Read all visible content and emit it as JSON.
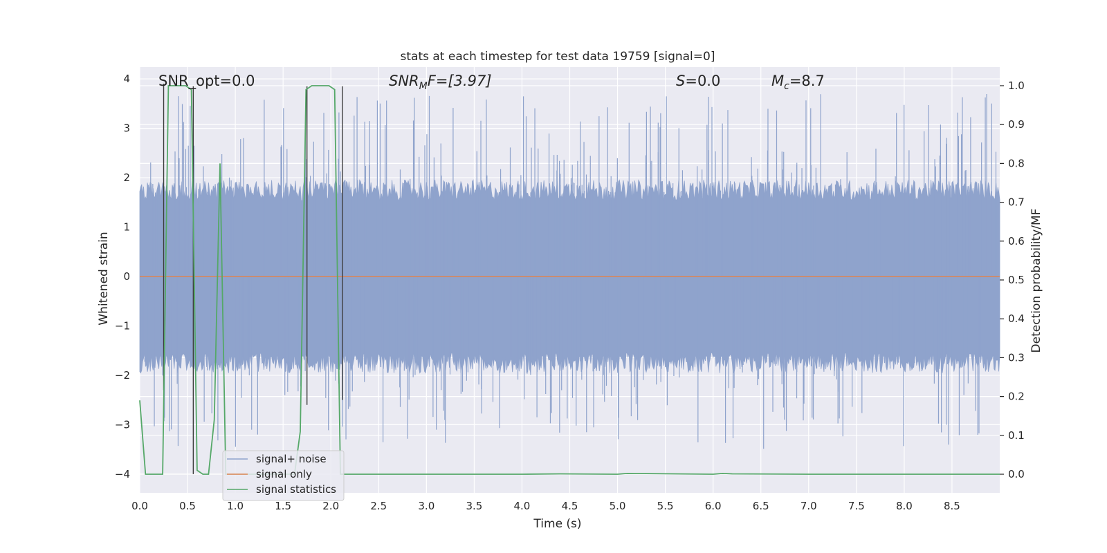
{
  "chart_data": {
    "type": "line",
    "title": "stats at each timestep for test data 19759 [signal=0]",
    "xlabel": "Time (s)",
    "ylabel": "Whitened strain",
    "ylabel_right": "Detection probability/MF",
    "xlim": [
      0.0,
      9.0
    ],
    "ylim": [
      -4.38,
      4.24
    ],
    "ylim_right": [
      -0.048,
      1.048
    ],
    "xticks": [
      0.0,
      0.5,
      1.0,
      1.5,
      2.0,
      2.5,
      3.0,
      3.5,
      4.0,
      4.5,
      5.0,
      5.5,
      6.0,
      6.5,
      7.0,
      7.5,
      8.0,
      8.5
    ],
    "xtick_labels": [
      "0.0",
      "0.5",
      "1.0",
      "1.5",
      "2.0",
      "2.5",
      "3.0",
      "3.5",
      "4.0",
      "4.5",
      "5.0",
      "5.5",
      "6.0",
      "6.5",
      "7.0",
      "7.5",
      "8.0",
      "8.5"
    ],
    "yticks": [
      -4,
      -3,
      -2,
      -1,
      0,
      1,
      2,
      3,
      4
    ],
    "ytick_labels": [
      "−4",
      "−3",
      "−2",
      "−1",
      "0",
      "1",
      "2",
      "3",
      "4"
    ],
    "yticks_right": [
      0.0,
      0.1,
      0.2,
      0.3,
      0.4,
      0.5,
      0.6,
      0.7,
      0.8,
      0.9,
      1.0
    ],
    "ytick_labels_right": [
      "0.0",
      "0.1",
      "0.2",
      "0.3",
      "0.4",
      "0.5",
      "0.6",
      "0.7",
      "0.8",
      "0.9",
      "1.0"
    ],
    "annotations": {
      "snr_opt": "SNR_opt=0.0",
      "snr_mf_main": "SNR",
      "snr_mf_sub": "M",
      "snr_mf_tail": "F=[3.97]",
      "s_label": "S",
      "s_tail": "=0.0",
      "mc_label": "M",
      "mc_sub": "c",
      "mc_tail": "=8.7"
    },
    "legend": {
      "placement": "lower-left",
      "entries": [
        "signal+ noise",
        "signal only",
        "signal statistics"
      ]
    },
    "series": [
      {
        "name": "signal+ noise",
        "axis": "left",
        "color": "#8fa3cc",
        "style": "noise envelope",
        "typical_range": [
          -1.7,
          1.7
        ],
        "peak_range": [
          -3.7,
          4.0
        ],
        "sample_rate_hz": 2048
      },
      {
        "name": "signal only",
        "axis": "left",
        "color": "#dd8452",
        "x": [
          0.0,
          9.0
        ],
        "y": [
          0.0,
          0.0
        ]
      },
      {
        "name": "signal statistics",
        "axis": "right",
        "color": "#55a868",
        "x": [
          0.0,
          0.06,
          0.12,
          0.18,
          0.24,
          0.3,
          0.36,
          0.42,
          0.48,
          0.54,
          0.6,
          0.66,
          0.72,
          0.78,
          0.84,
          0.9,
          0.96,
          1.02,
          1.08,
          1.14,
          1.2,
          1.26,
          1.32,
          1.38,
          1.44,
          1.5,
          1.56,
          1.62,
          1.68,
          1.74,
          1.8,
          1.86,
          1.92,
          1.98,
          2.04,
          2.1,
          2.16,
          2.22,
          2.28,
          2.4,
          3.0,
          4.0,
          4.4,
          5.0,
          5.1,
          6.0,
          6.1,
          6.2,
          7.0,
          8.0,
          9.0
        ],
        "y": [
          0.19,
          0.0,
          0.0,
          0.0,
          0.0,
          1.0,
          1.0,
          1.0,
          1.0,
          0.99,
          0.01,
          0.0,
          0.0,
          0.14,
          0.8,
          0.0,
          0.0,
          0.0,
          0.0,
          0.0,
          0.0,
          0.0,
          0.0,
          0.0,
          0.0,
          0.0,
          0.0,
          0.0,
          0.11,
          0.99,
          1.0,
          1.0,
          1.0,
          1.0,
          0.99,
          0.0,
          0.0,
          0.0,
          0.0,
          0.0,
          0.0,
          0.0,
          0.001,
          0.0,
          0.002,
          0.0,
          0.002,
          0.001,
          0.0,
          0.0,
          0.0
        ]
      }
    ],
    "markers": {
      "color": "#3c3c3c",
      "style": "vertical line",
      "x": [
        0.25,
        0.56,
        1.75,
        2.12
      ],
      "y_top": [
        3.9,
        3.85,
        3.85,
        3.85
      ],
      "y_bottom": [
        -2.3,
        -4.0,
        -2.6,
        -2.5
      ]
    },
    "style": {
      "background": "#eaeaf2",
      "grid": true,
      "grid_color": "#ffffff",
      "text_color": "#262626"
    }
  }
}
